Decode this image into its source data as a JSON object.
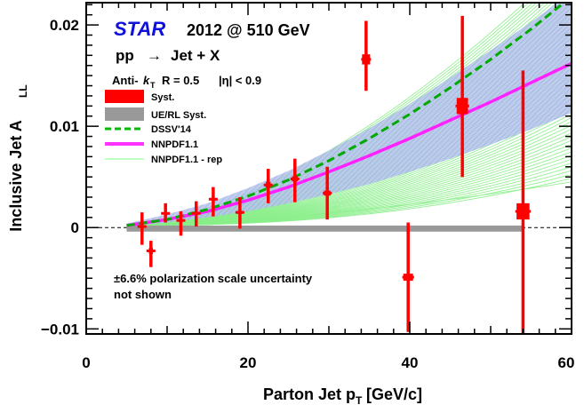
{
  "chart_data": {
    "type": "scatter",
    "experiment": "STAR",
    "title_rest": "2012 @ 510 GeV",
    "process": "pp",
    "process_arrow": "→",
    "process_final": "Jet + X",
    "algo_prefix": "Anti-",
    "algo_k": "k",
    "algo_k_sub": "T",
    "algo_params": "R = 0.5",
    "eta_text": "|η| < 0.9",
    "xlabel": "Parton Jet p",
    "xlabel_sub": "T",
    "xlabel_unit": "[GeV/c]",
    "ylabel": "Inclusive Jet A",
    "ylabel_sub": "LL",
    "xlim": [
      0,
      60
    ],
    "ylim": [
      -0.0105,
      0.0222
    ],
    "x_ticks": [
      0,
      20,
      40,
      60
    ],
    "y_ticks": [
      -0.01,
      0,
      0.01,
      0.02
    ],
    "x_tick_labels": [
      "0",
      "20",
      "40",
      "60"
    ],
    "y_tick_labels": [
      "−0.01",
      "0",
      "0.01",
      "0.02"
    ],
    "annotation_line1": "±6.6% polarization scale uncertainty",
    "annotation_line2": "not shown",
    "legend": {
      "position": "top-left",
      "entries": [
        {
          "label": "Syst.",
          "style": "box",
          "color": "#ff0000"
        },
        {
          "label": "UE/RL Syst.",
          "style": "box",
          "color": "#999999"
        },
        {
          "label": "DSSV'14",
          "style": "dashed-line",
          "color": "#00bb00"
        },
        {
          "label": "NNPDF1.1",
          "style": "thick-line",
          "color": "#ff33ff"
        },
        {
          "label": "NNPDF1.1 - rep",
          "style": "thin-line",
          "color": "#99ff99"
        }
      ]
    },
    "colors": {
      "data": "#ff0000",
      "ue_rl": "#999999",
      "dssv": "#00aa00",
      "nnpdf": "#ff22ff",
      "replicas": "#88ee88",
      "band": "#a8b8e8",
      "title_star": "#1010dd"
    },
    "data_points": [
      {
        "x": 6.9,
        "y": 0.0001,
        "stat_lo": -0.0017,
        "stat_hi": 0.0015,
        "syst_w": 0.4,
        "syst_h": 0.0003
      },
      {
        "x": 8.0,
        "y": -0.0023,
        "stat_lo": -0.0039,
        "stat_hi": -0.0013,
        "syst_w": 0.5,
        "syst_h": 0.0006
      },
      {
        "x": 9.8,
        "y": 0.0014,
        "stat_lo": 0.0005,
        "stat_hi": 0.0024,
        "syst_w": 0.4,
        "syst_h": 0.0002
      },
      {
        "x": 11.7,
        "y": 0.0007,
        "stat_lo": -0.0008,
        "stat_hi": 0.0016,
        "syst_w": 0.4,
        "syst_h": 0.0002
      },
      {
        "x": 13.6,
        "y": 0.0014,
        "stat_lo": 0.0001,
        "stat_hi": 0.0026,
        "syst_w": 0.4,
        "syst_h": 0.0002
      },
      {
        "x": 15.7,
        "y": 0.0028,
        "stat_lo": 0.0011,
        "stat_hi": 0.004,
        "syst_w": 0.5,
        "syst_h": 0.0002
      },
      {
        "x": 19.0,
        "y": 0.0015,
        "stat_lo": -0.0001,
        "stat_hi": 0.003,
        "syst_w": 0.6,
        "syst_h": 0.0002
      },
      {
        "x": 22.5,
        "y": 0.0042,
        "stat_lo": 0.0024,
        "stat_hi": 0.0058,
        "syst_w": 0.6,
        "syst_h": 0.0006
      },
      {
        "x": 25.8,
        "y": 0.0048,
        "stat_lo": 0.0025,
        "stat_hi": 0.0068,
        "syst_w": 0.7,
        "syst_h": 0.0005
      },
      {
        "x": 29.8,
        "y": 0.0034,
        "stat_lo": 0.0008,
        "stat_hi": 0.006,
        "syst_w": 0.8,
        "syst_h": 0.0005
      },
      {
        "x": 34.6,
        "y": 0.0166,
        "stat_lo": 0.0135,
        "stat_hi": 0.0204,
        "syst_w": 1.0,
        "syst_h": 0.001
      },
      {
        "x": 39.8,
        "y": -0.0049,
        "stat_lo": -0.0103,
        "stat_hi": 0.0005,
        "syst_w": 1.2,
        "syst_h": 0.0007
      },
      {
        "x": 46.5,
        "y": 0.012,
        "stat_lo": 0.005,
        "stat_hi": 0.0209,
        "syst_w": 1.4,
        "syst_h": 0.0016
      },
      {
        "x": 54.0,
        "y": 0.0016,
        "stat_lo": -0.0105,
        "stat_hi": 0.0155,
        "syst_w": 1.6,
        "syst_h": 0.0016
      }
    ],
    "ue_rl_band": {
      "x_start": 5.0,
      "x_end": 54.0,
      "y": -0.0001,
      "half_height": 0.0003
    },
    "dssv14": {
      "x": [
        5,
        10,
        15,
        20,
        25,
        30,
        35,
        40,
        45,
        50,
        55,
        60
      ],
      "y": [
        0.0002,
        0.0008,
        0.0018,
        0.0031,
        0.0047,
        0.0066,
        0.0088,
        0.0112,
        0.0138,
        0.0166,
        0.0196,
        0.0228
      ]
    },
    "nnpdf11": {
      "x": [
        5,
        10,
        15,
        20,
        25,
        30,
        35,
        40,
        45,
        50,
        55,
        60
      ],
      "y": [
        0.0002,
        0.0008,
        0.0016,
        0.0027,
        0.004,
        0.0055,
        0.0071,
        0.0088,
        0.0106,
        0.0124,
        0.0143,
        0.0162
      ]
    },
    "nnpdf11_band": {
      "x": [
        5,
        10,
        15,
        20,
        25,
        30,
        35,
        40,
        45,
        50,
        55,
        60
      ],
      "lo": [
        0.0001,
        0.0005,
        0.001,
        0.0016,
        0.0024,
        0.0033,
        0.0043,
        0.0055,
        0.0068,
        0.0082,
        0.0097,
        0.0113
      ],
      "hi": [
        0.0004,
        0.0013,
        0.0024,
        0.0039,
        0.0056,
        0.0076,
        0.0098,
        0.0122,
        0.0148,
        0.0175,
        0.0203,
        0.0232
      ]
    },
    "nnpdf11_replicas": {
      "count": 60,
      "x_start": 5,
      "x_end": 60,
      "y_start": 0.0002,
      "end_min": 0.0045,
      "end_max": 0.0265,
      "exponent_min": 1.6,
      "exponent_max": 2.3
    }
  }
}
